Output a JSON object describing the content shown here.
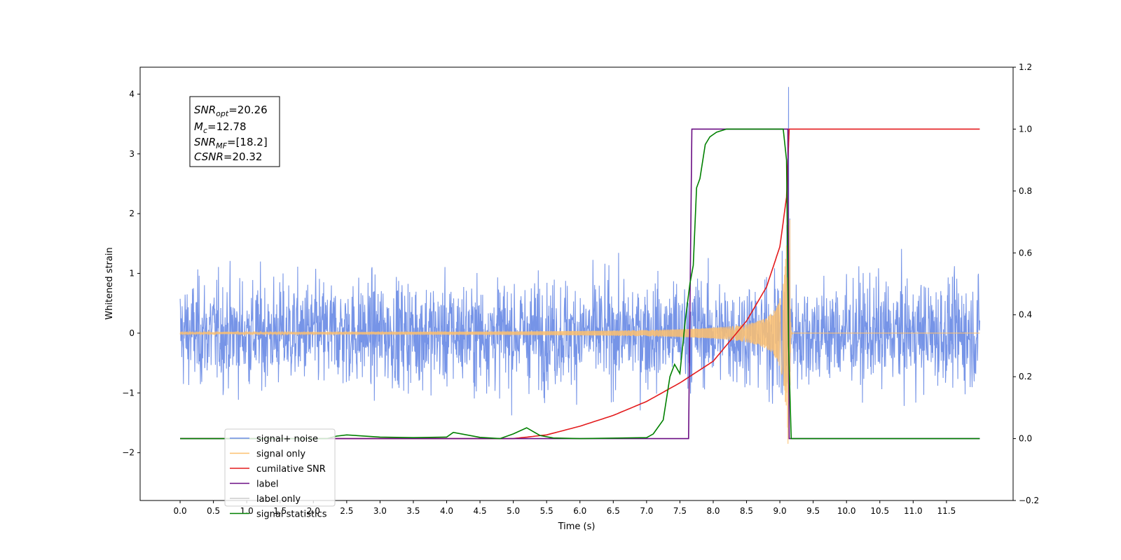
{
  "chart_data": {
    "type": "line",
    "xlabel": "Time (s)",
    "ylabel": "Whitened strain",
    "xlim": [
      -0.6,
      12.5
    ],
    "ylim": [
      -2.8,
      4.45
    ],
    "ylim_right": [
      -0.2,
      1.2
    ],
    "x_ticks": [
      0.0,
      0.5,
      1.0,
      1.5,
      2.0,
      2.5,
      3.0,
      3.5,
      4.0,
      4.5,
      5.0,
      5.5,
      6.0,
      6.5,
      7.0,
      7.5,
      8.0,
      8.5,
      9.0,
      9.5,
      10.0,
      10.5,
      11.0,
      11.5
    ],
    "x_tick_labels": [
      "0.0",
      "0.5",
      "1.0",
      "1.5",
      "2.0",
      "2.5",
      "3.0",
      "3.5",
      "4.0",
      "4.5",
      "5.0",
      "5.5",
      "6.0",
      "6.5",
      "7.0",
      "7.5",
      "8.0",
      "8.5",
      "9.0",
      "9.5",
      "10.0",
      "10.5",
      "11.0",
      "11.5"
    ],
    "y_ticks": [
      -2,
      -1,
      0,
      1,
      2,
      3,
      4
    ],
    "y_tick_labels": [
      "−2",
      "−1",
      "0",
      "1",
      "2",
      "3",
      "4"
    ],
    "y_right_ticks": [
      -0.2,
      0.0,
      0.2,
      0.4,
      0.6,
      0.8,
      1.0,
      1.2
    ],
    "y_right_tick_labels": [
      "−0.2",
      "0.0",
      "0.2",
      "0.4",
      "0.6",
      "0.8",
      "1.0",
      "1.2"
    ],
    "grid": false,
    "legend_position": "lower-left",
    "annotation": {
      "lines": [
        {
          "main": "SNR",
          "sub": "opt",
          "rest": "=20.26"
        },
        {
          "main": "M",
          "sub": "c",
          "rest": "=12.78"
        },
        {
          "main": "SNR",
          "sub": "MF",
          "rest": "=[18.2]"
        },
        {
          "main": "CSNR",
          "sub": "",
          "rest": "=20.32"
        }
      ]
    },
    "series": [
      {
        "name": "signal+ noise",
        "color": "#6f8ee6",
        "axis": "left",
        "kind": "noise",
        "x_range": [
          0.0,
          12.0
        ],
        "amplitude_range": [
          -2.45,
          2.4
        ],
        "peak": {
          "x": 9.13,
          "y": 4.12
        }
      },
      {
        "name": "signal only",
        "color": "#fdbf6f",
        "axis": "left",
        "kind": "chirp",
        "x_range": [
          0.0,
          12.0
        ],
        "merger_time": 9.15,
        "peak_amplitude": 1.9
      },
      {
        "name": "cumilative SNR",
        "color": "#e31a1c",
        "axis": "right",
        "x": [
          0.0,
          5.0,
          5.5,
          6.0,
          6.5,
          7.0,
          7.5,
          8.0,
          8.5,
          8.8,
          9.0,
          9.1,
          9.13,
          9.14,
          12.0
        ],
        "y": [
          0.0,
          0.0,
          0.012,
          0.04,
          0.075,
          0.12,
          0.18,
          0.25,
          0.38,
          0.49,
          0.62,
          0.78,
          0.95,
          1.0,
          1.0
        ]
      },
      {
        "name": "label",
        "color": "#6a0d83",
        "axis": "right",
        "x": [
          0.0,
          7.63,
          7.68,
          9.12,
          9.14,
          12.0
        ],
        "y": [
          0.0,
          0.0,
          1.0,
          1.0,
          0.0,
          0.0
        ]
      },
      {
        "name": "label only",
        "color": "#cccccc",
        "axis": "right",
        "x": [],
        "y": []
      },
      {
        "name": "signal statistics",
        "color": "#008000",
        "axis": "right",
        "x": [
          0.0,
          2.2,
          2.35,
          2.5,
          3.0,
          3.5,
          4.0,
          4.1,
          4.5,
          4.8,
          5.0,
          5.2,
          5.4,
          5.6,
          6.0,
          7.0,
          7.1,
          7.25,
          7.35,
          7.42,
          7.5,
          7.58,
          7.65,
          7.7,
          7.75,
          7.8,
          7.88,
          7.95,
          8.05,
          8.2,
          8.4,
          9.05,
          9.1,
          9.13,
          9.17,
          12.0
        ],
        "y": [
          0.0,
          0.0,
          0.008,
          0.012,
          0.005,
          0.003,
          0.005,
          0.02,
          0.004,
          0.0,
          0.015,
          0.035,
          0.01,
          0.002,
          0.0,
          0.003,
          0.015,
          0.06,
          0.2,
          0.24,
          0.21,
          0.38,
          0.5,
          0.56,
          0.81,
          0.84,
          0.95,
          0.975,
          0.99,
          1.0,
          1.0,
          1.0,
          0.9,
          0.3,
          0.0,
          0.0
        ]
      }
    ]
  }
}
